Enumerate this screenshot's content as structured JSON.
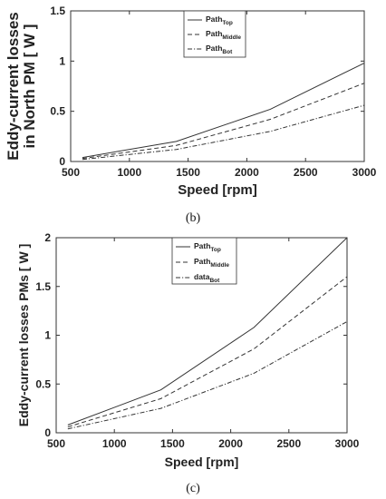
{
  "chart_data": [
    {
      "type": "line",
      "caption": "(b)",
      "xlabel": "Speed [rpm]",
      "ylabel_lines": [
        "Eddy-current losses",
        "in North PM [ W ]"
      ],
      "xlim": [
        500,
        3000
      ],
      "ylim": [
        0,
        1.5
      ],
      "xticks": [
        500,
        1000,
        1500,
        2000,
        2500,
        3000
      ],
      "yticks": [
        0,
        0.5,
        1,
        1.5
      ],
      "ytick_labels": [
        "0",
        "0.5",
        "1",
        "1.5"
      ],
      "grid": false,
      "legend_position": "top-right",
      "series": [
        {
          "name": "Path",
          "sub": "Top",
          "dash": "solid",
          "x": [
            600,
            1400,
            2200,
            3000
          ],
          "y": [
            0.04,
            0.2,
            0.52,
            0.98
          ]
        },
        {
          "name": "Path",
          "sub": "Middle",
          "dash": "dashed",
          "x": [
            600,
            1400,
            2200,
            3000
          ],
          "y": [
            0.03,
            0.16,
            0.42,
            0.78
          ]
        },
        {
          "name": "Path",
          "sub": "Bot",
          "dash": "dashdot",
          "x": [
            600,
            1400,
            2200,
            3000
          ],
          "y": [
            0.02,
            0.12,
            0.3,
            0.56
          ]
        }
      ]
    },
    {
      "type": "line",
      "caption": "(c)",
      "xlabel": "Speed [rpm]",
      "ylabel_lines": [
        "Eddy-current losses  PMs [ W ]"
      ],
      "xlim": [
        500,
        3000
      ],
      "ylim": [
        0,
        2
      ],
      "xticks": [
        500,
        1000,
        1500,
        2000,
        2500,
        3000
      ],
      "yticks": [
        0,
        0.5,
        1,
        1.5,
        2
      ],
      "ytick_labels": [
        "0",
        "0.5",
        "1",
        "1.5",
        "2"
      ],
      "grid": false,
      "legend_position": "top-center",
      "series": [
        {
          "name": "Path",
          "sub": "Top",
          "dash": "solid",
          "x": [
            600,
            1400,
            2200,
            3000
          ],
          "y": [
            0.08,
            0.44,
            1.08,
            2.0
          ]
        },
        {
          "name": "Path",
          "sub": "Middle",
          "dash": "dashed",
          "x": [
            600,
            1400,
            2200,
            3000
          ],
          "y": [
            0.06,
            0.35,
            0.86,
            1.6
          ]
        },
        {
          "name": "data",
          "sub": "Bot",
          "dash": "dashdot",
          "x": [
            600,
            1400,
            2200,
            3000
          ],
          "y": [
            0.04,
            0.25,
            0.61,
            1.14
          ]
        }
      ]
    }
  ]
}
